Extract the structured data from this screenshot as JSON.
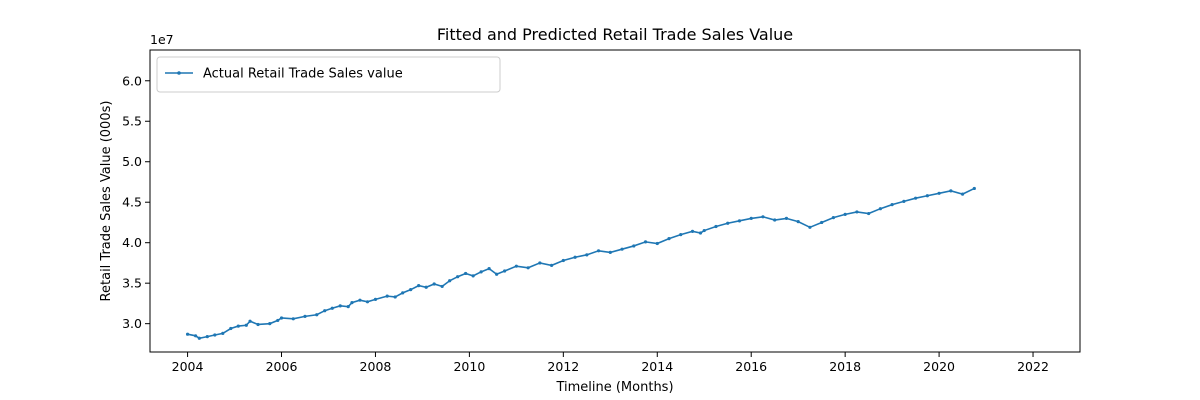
{
  "chart_data": {
    "type": "line",
    "title": "Fitted and Predicted Retail Trade Sales Value",
    "xlabel": "Timeline (Months)",
    "ylabel": "Retail Trade Sales Value (000s)",
    "y_multiplier_label": "1e7",
    "xlim": [
      2003.2,
      2023.0
    ],
    "ylim": [
      2.65,
      6.38
    ],
    "x_ticks": [
      2004,
      2006,
      2008,
      2010,
      2012,
      2014,
      2016,
      2018,
      2020,
      2022
    ],
    "y_ticks": [
      3.0,
      3.5,
      4.0,
      4.5,
      5.0,
      5.5,
      6.0
    ],
    "grid": false,
    "legend_position": "top-left",
    "series": [
      {
        "name": "Actual Retail Trade Sales value",
        "color": "#1f77b4",
        "style": "solid-dot",
        "points": [
          [
            2004.0,
            2.87
          ],
          [
            2004.17,
            2.85
          ],
          [
            2004.25,
            2.82
          ],
          [
            2004.42,
            2.84
          ],
          [
            2004.58,
            2.86
          ],
          [
            2004.75,
            2.88
          ],
          [
            2004.92,
            2.94
          ],
          [
            2005.08,
            2.97
          ],
          [
            2005.25,
            2.98
          ],
          [
            2005.33,
            3.03
          ],
          [
            2005.5,
            2.99
          ],
          [
            2005.75,
            3.0
          ],
          [
            2005.92,
            3.04
          ],
          [
            2006.0,
            3.07
          ],
          [
            2006.25,
            3.06
          ],
          [
            2006.5,
            3.09
          ],
          [
            2006.75,
            3.11
          ],
          [
            2006.92,
            3.16
          ],
          [
            2007.08,
            3.19
          ],
          [
            2007.25,
            3.22
          ],
          [
            2007.42,
            3.21
          ],
          [
            2007.5,
            3.26
          ],
          [
            2007.67,
            3.29
          ],
          [
            2007.83,
            3.27
          ],
          [
            2008.0,
            3.3
          ],
          [
            2008.25,
            3.34
          ],
          [
            2008.42,
            3.33
          ],
          [
            2008.58,
            3.38
          ],
          [
            2008.75,
            3.42
          ],
          [
            2008.92,
            3.47
          ],
          [
            2009.08,
            3.45
          ],
          [
            2009.25,
            3.49
          ],
          [
            2009.42,
            3.46
          ],
          [
            2009.58,
            3.53
          ],
          [
            2009.75,
            3.58
          ],
          [
            2009.92,
            3.62
          ],
          [
            2010.08,
            3.59
          ],
          [
            2010.25,
            3.64
          ],
          [
            2010.42,
            3.68
          ],
          [
            2010.58,
            3.61
          ],
          [
            2010.75,
            3.65
          ],
          [
            2011.0,
            3.71
          ],
          [
            2011.25,
            3.69
          ],
          [
            2011.5,
            3.75
          ],
          [
            2011.75,
            3.72
          ],
          [
            2012.0,
            3.78
          ],
          [
            2012.25,
            3.82
          ],
          [
            2012.5,
            3.85
          ],
          [
            2012.75,
            3.9
          ],
          [
            2013.0,
            3.88
          ],
          [
            2013.25,
            3.92
          ],
          [
            2013.5,
            3.96
          ],
          [
            2013.75,
            4.01
          ],
          [
            2014.0,
            3.99
          ],
          [
            2014.25,
            4.05
          ],
          [
            2014.5,
            4.1
          ],
          [
            2014.75,
            4.14
          ],
          [
            2014.92,
            4.12
          ],
          [
            2015.0,
            4.15
          ],
          [
            2015.25,
            4.2
          ],
          [
            2015.5,
            4.24
          ],
          [
            2015.75,
            4.27
          ],
          [
            2016.0,
            4.3
          ],
          [
            2016.25,
            4.32
          ],
          [
            2016.5,
            4.28
          ],
          [
            2016.75,
            4.3
          ],
          [
            2017.0,
            4.26
          ],
          [
            2017.25,
            4.19
          ],
          [
            2017.5,
            4.25
          ],
          [
            2017.75,
            4.31
          ],
          [
            2018.0,
            4.35
          ],
          [
            2018.25,
            4.38
          ],
          [
            2018.5,
            4.36
          ],
          [
            2018.75,
            4.42
          ],
          [
            2019.0,
            4.47
          ],
          [
            2019.25,
            4.51
          ],
          [
            2019.5,
            4.55
          ],
          [
            2019.75,
            4.58
          ],
          [
            2020.0,
            4.61
          ],
          [
            2020.25,
            4.64
          ],
          [
            2020.5,
            4.6
          ],
          [
            2020.75,
            4.67
          ]
        ]
      }
    ]
  }
}
